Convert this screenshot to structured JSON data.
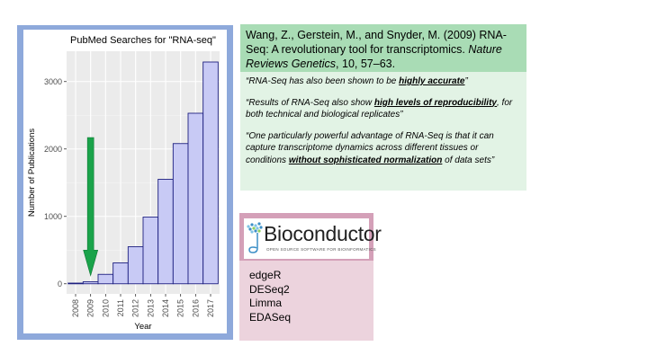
{
  "citation": {
    "plain": "Wang, Z., Gerstein, M., and Snyder, M. (2009) RNA-Seq: A revolutionary tool for transcriptomics. ",
    "journal": "Nature Reviews Genetics",
    "tail": ", 10, 57–63."
  },
  "quotes": [
    {
      "before": "“RNA-Seq has also been shown to be ",
      "emphasis": "highly accurate",
      "after": "”"
    },
    {
      "before": "“Results of RNA-Seq also show ",
      "emphasis": "high levels of reproducibility",
      "after": ", for both technical and biological replicates”"
    },
    {
      "before": "“One particularly powerful advantage of RNA-Seq is that it can capture transcriptome dynamics across different tissues or conditions ",
      "emphasis": "without sophisticated normalization",
      "after": " of data sets”"
    }
  ],
  "bioconductor": {
    "logo_text": "Bioconductor",
    "tagline": "OPEN SOURCE SOFTWARE FOR BIOINFORMATICS",
    "packages": [
      "edgeR",
      "DESeq2",
      "Limma",
      "EDASeq"
    ]
  },
  "colors": {
    "frame": "#8ea9db",
    "bar_fill": "#c8caf5",
    "bar_stroke": "#1e2080",
    "arrow": "#1aa34a",
    "citation_bg": "#a9dcb5",
    "quotes_bg": "#e2f3e5",
    "pkg_frame": "#d4a0b8",
    "pkg_bg": "#ecd3dd"
  },
  "chart_data": {
    "type": "bar",
    "title": "PubMed Searches for \"RNA-seq\"",
    "xlabel": "Year",
    "ylabel": "Number of Publications",
    "categories": [
      "2008",
      "2009",
      "2010",
      "2011",
      "2012",
      "2013",
      "2014",
      "2015",
      "2016",
      "2017"
    ],
    "values": [
      10,
      30,
      140,
      310,
      550,
      990,
      1550,
      2080,
      2530,
      3290
    ],
    "ylim": [
      -150,
      3450
    ],
    "yticks": [
      0,
      1000,
      2000,
      3000
    ],
    "grid": true,
    "highlight": {
      "category": "2009",
      "marker": "arrow-down"
    }
  }
}
